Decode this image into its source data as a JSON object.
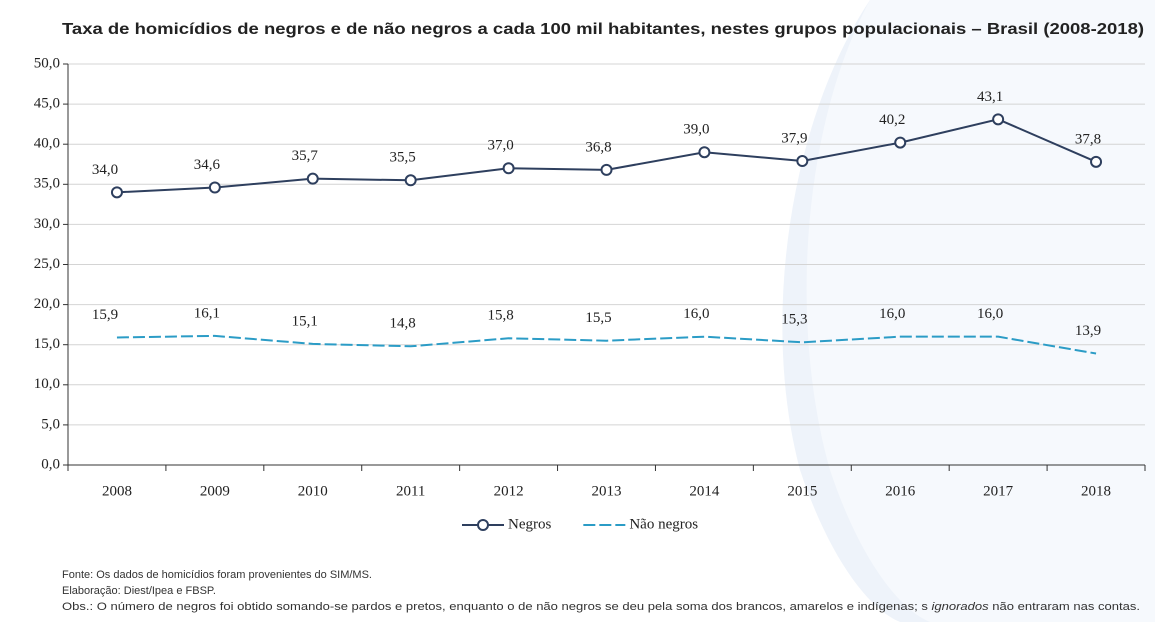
{
  "chart_data": {
    "type": "line",
    "title": "Taxa de homicídios de negros e de não negros a cada 100 mil habitantes, nestes grupos populacionais – Brasil (2008-2018)",
    "categories": [
      "2008",
      "2009",
      "2010",
      "2011",
      "2012",
      "2013",
      "2014",
      "2015",
      "2016",
      "2017",
      "2018"
    ],
    "series": [
      {
        "name": "Negros",
        "color": "#2e3f5e",
        "dash": false,
        "marker": true,
        "values": [
          34.0,
          34.6,
          35.7,
          35.5,
          37.0,
          36.8,
          39.0,
          37.9,
          40.2,
          43.1,
          37.8
        ],
        "value_labels": [
          "34,0",
          "34,6",
          "35,7",
          "35,5",
          "37,0",
          "36,8",
          "39,0",
          "37,9",
          "40,2",
          "43,1",
          "37,8"
        ]
      },
      {
        "name": "Não negros",
        "color": "#2b9cc6",
        "dash": true,
        "marker": false,
        "values": [
          15.9,
          16.1,
          15.1,
          14.8,
          15.8,
          15.5,
          16.0,
          15.3,
          16.0,
          16.0,
          13.9
        ],
        "value_labels": [
          "15,9",
          "16,1",
          "15,1",
          "14,8",
          "15,8",
          "15,5",
          "16,0",
          "15,3",
          "16,0",
          "16,0",
          "13,9"
        ]
      }
    ],
    "ylim": [
      0,
      50
    ],
    "yticks": [
      {
        "value": 0,
        "label": "0,0"
      },
      {
        "value": 5,
        "label": "5,0"
      },
      {
        "value": 10,
        "label": "10,0"
      },
      {
        "value": 15,
        "label": "15,0"
      },
      {
        "value": 20,
        "label": "20,0"
      },
      {
        "value": 25,
        "label": "25,0"
      },
      {
        "value": 30,
        "label": "30,0"
      },
      {
        "value": 35,
        "label": "35,0"
      },
      {
        "value": 40,
        "label": "40,0"
      },
      {
        "value": 45,
        "label": "45,0"
      },
      {
        "value": 50,
        "label": "50,0"
      }
    ],
    "grid": true,
    "legend": "bottom",
    "notes": [
      "Fonte: Os dados de homicídios foram provenientes do SIM/MS.",
      "Elaboração: Diest/Ipea e FBSP."
    ],
    "obs": [
      "Obs.: O número de negros foi obtido somando-se pardos e pretos, enquanto o de não negros se deu pela soma dos brancos, amarelos e indígenas; s ",
      "ignorados",
      " não entraram nas contas."
    ]
  }
}
